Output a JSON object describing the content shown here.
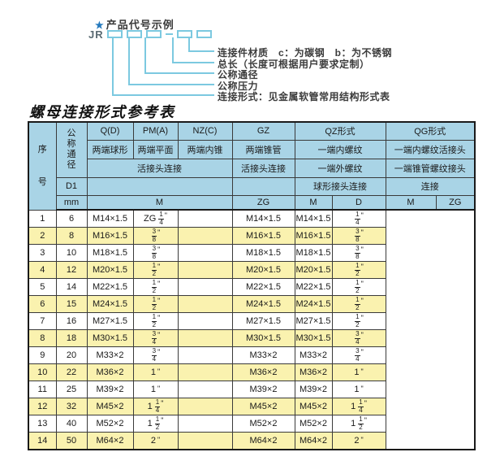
{
  "diagram": {
    "star": "★",
    "heading": "产品代号示例",
    "code_prefix": "JR",
    "labels": [
      "连接件材质　c：为碳钢　b：为不锈钢",
      "总长（长度可根据用户要求定制）",
      "公称通径",
      "公称压力",
      "连接形式：见金属软管常用结构形式表"
    ]
  },
  "table": {
    "title": "螺母连接形式参考表",
    "colors": {
      "header_bg": "#a9d4e6",
      "alt_row_bg": "#faf2af",
      "line_blue": "#7cc9e0"
    },
    "header": {
      "seq": "序号",
      "dia": "公称通径",
      "d1": "D1",
      "mm": "mm",
      "q": "Q(D)",
      "q_desc": "两端球形",
      "pm": "PM(A)",
      "pm_desc": "两端平面",
      "nz": "NZ(C)",
      "nz_desc": "两端内锥",
      "gz": "GZ",
      "gz_desc": "两端锥管",
      "union_left": "活接头连接",
      "union_gz": "活接头连接",
      "qz": "QZ形式",
      "qz_d1": "一端内螺纹",
      "qz_d2": "一端外螺纹",
      "qz_conn": "球形接头连接",
      "qg": "QG形式",
      "qg_d1": "一端内螺纹活接头",
      "qg_d2": "一端锥管螺纹接头",
      "qg_conn": "连接",
      "sub_m": "M",
      "sub_zg": "ZG",
      "sub_qz_m": "M",
      "sub_qz_d": "D",
      "sub_qg_m": "M",
      "sub_qg_zg": "ZG"
    },
    "rows": [
      {
        "no": "1",
        "dn": "6",
        "m": "M14×1.5",
        "gz": "ZG 1/4\"",
        "qz_m": "",
        "qz_d": "M14×1.5",
        "qg_m": "M14×1.5",
        "qg_zg": "1/4\""
      },
      {
        "no": "2",
        "dn": "8",
        "m": "M16×1.5",
        "gz": "3/8\"",
        "qz_m": "",
        "qz_d": "M16×1.5",
        "qg_m": "M16×1.5",
        "qg_zg": "3/8\""
      },
      {
        "no": "3",
        "dn": "10",
        "m": "M18×1.5",
        "gz": "3/8\"",
        "qz_m": "",
        "qz_d": "M18×1.5",
        "qg_m": "M18×1.5",
        "qg_zg": "3/8\""
      },
      {
        "no": "4",
        "dn": "12",
        "m": "M20×1.5",
        "gz": "1/2\"",
        "qz_m": "",
        "qz_d": "M20×1.5",
        "qg_m": "M20×1.5",
        "qg_zg": "1/2\""
      },
      {
        "no": "5",
        "dn": "14",
        "m": "M22×1.5",
        "gz": "1/2\"",
        "qz_m": "",
        "qz_d": "M22×1.5",
        "qg_m": "M22×1.5",
        "qg_zg": "1/2\""
      },
      {
        "no": "6",
        "dn": "15",
        "m": "M24×1.5",
        "gz": "1/2\"",
        "qz_m": "",
        "qz_d": "M24×1.5",
        "qg_m": "M24×1.5",
        "qg_zg": "1/2\""
      },
      {
        "no": "7",
        "dn": "16",
        "m": "M27×1.5",
        "gz": "1/2\"",
        "qz_m": "",
        "qz_d": "M27×1.5",
        "qg_m": "M27×1.5",
        "qg_zg": "1/2\""
      },
      {
        "no": "8",
        "dn": "18",
        "m": "M30×1.5",
        "gz": "3/4\"",
        "qz_m": "",
        "qz_d": "M30×1.5",
        "qg_m": "M30×1.5",
        "qg_zg": "3/4\""
      },
      {
        "no": "9",
        "dn": "20",
        "m": "M33×2",
        "gz": "3/4\"",
        "qz_m": "",
        "qz_d": "M33×2",
        "qg_m": "M33×2",
        "qg_zg": "3/4\""
      },
      {
        "no": "10",
        "dn": "22",
        "m": "M36×2",
        "gz": "1\"",
        "qz_m": "",
        "qz_d": "M36×2",
        "qg_m": "M36×2",
        "qg_zg": "1\""
      },
      {
        "no": "11",
        "dn": "25",
        "m": "M39×2",
        "gz": "1\"",
        "qz_m": "",
        "qz_d": "M39×2",
        "qg_m": "M39×2",
        "qg_zg": "1\""
      },
      {
        "no": "12",
        "dn": "32",
        "m": "M45×2",
        "gz": "1 1/4\"",
        "qz_m": "",
        "qz_d": "M45×2",
        "qg_m": "M45×2",
        "qg_zg": "1 1/4\""
      },
      {
        "no": "13",
        "dn": "40",
        "m": "M52×2",
        "gz": "1 1/2\"",
        "qz_m": "",
        "qz_d": "M52×2",
        "qg_m": "M52×2",
        "qg_zg": "1 1/2\""
      },
      {
        "no": "14",
        "dn": "50",
        "m": "M64×2",
        "gz": "2\"",
        "qz_m": "",
        "qz_d": "M64×2",
        "qg_m": "M64×2",
        "qg_zg": "2\""
      }
    ]
  }
}
